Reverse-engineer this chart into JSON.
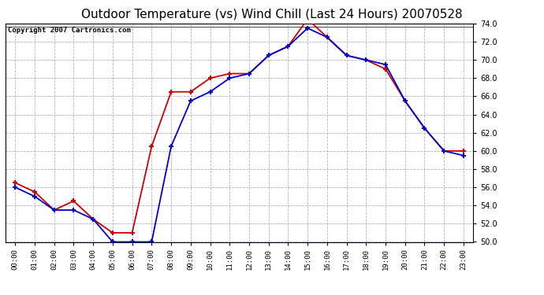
{
  "title": "Outdoor Temperature (vs) Wind Chill (Last 24 Hours) 20070528",
  "copyright": "Copyright 2007 Cartronics.com",
  "hours": [
    "00:00",
    "01:00",
    "02:00",
    "03:00",
    "04:00",
    "05:00",
    "06:00",
    "07:00",
    "08:00",
    "09:00",
    "10:00",
    "11:00",
    "12:00",
    "13:00",
    "14:00",
    "15:00",
    "16:00",
    "17:00",
    "18:00",
    "19:00",
    "20:00",
    "21:00",
    "22:00",
    "23:00"
  ],
  "outdoor_temp": [
    56.5,
    55.5,
    53.5,
    54.5,
    52.5,
    51.0,
    51.0,
    60.5,
    66.5,
    66.5,
    68.0,
    68.5,
    68.5,
    70.5,
    71.5,
    74.5,
    72.5,
    70.5,
    70.0,
    69.0,
    65.5,
    62.5,
    60.0,
    60.0
  ],
  "wind_chill": [
    56.0,
    55.0,
    53.5,
    53.5,
    52.5,
    50.0,
    50.0,
    50.0,
    60.5,
    65.5,
    66.5,
    68.0,
    68.5,
    70.5,
    71.5,
    73.5,
    72.5,
    70.5,
    70.0,
    69.5,
    65.5,
    62.5,
    60.0,
    59.5
  ],
  "temp_color": "#cc0000",
  "chill_color": "#0000cc",
  "bg_color": "#ffffff",
  "grid_color": "#b0b0cc",
  "ylim": [
    50.0,
    74.0
  ],
  "yticks": [
    50.0,
    52.0,
    54.0,
    56.0,
    58.0,
    60.0,
    62.0,
    64.0,
    66.0,
    68.0,
    70.0,
    72.0,
    74.0
  ],
  "title_fontsize": 11,
  "copyright_fontsize": 6.5
}
